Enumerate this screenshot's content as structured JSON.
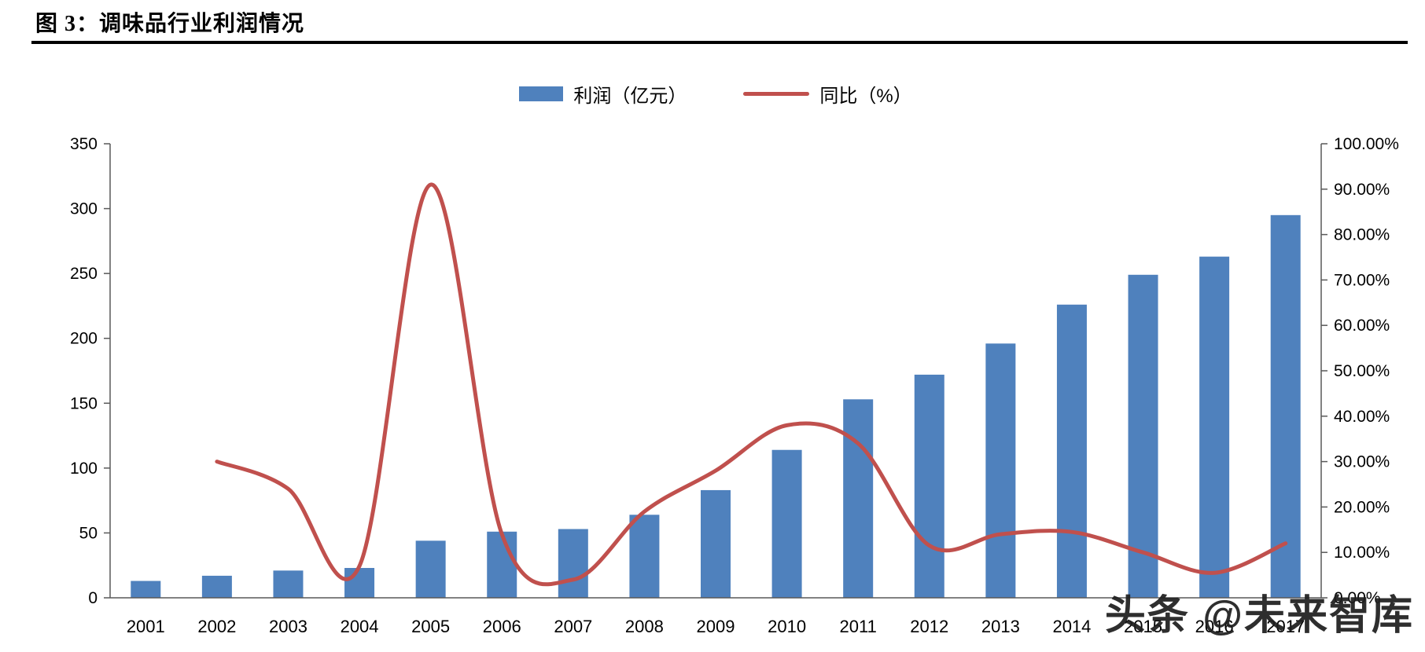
{
  "page": {
    "title": "图 3：调味品行业利润情况",
    "watermark": "头条 @未来智库"
  },
  "chart_data": {
    "type": "bar",
    "combo": "bar+line",
    "title": "调味品行业利润情况",
    "categories": [
      "2001",
      "2002",
      "2003",
      "2004",
      "2005",
      "2006",
      "2007",
      "2008",
      "2009",
      "2010",
      "2011",
      "2012",
      "2013",
      "2014",
      "2015",
      "2016",
      "2017"
    ],
    "series": [
      {
        "name": "利润（亿元）",
        "type": "bar",
        "axis": "left",
        "color": "#4F81BD",
        "values": [
          13,
          17,
          21,
          23,
          44,
          51,
          53,
          64,
          83,
          114,
          153,
          172,
          196,
          226,
          249,
          263,
          295
        ]
      },
      {
        "name": "同比（%）",
        "type": "line",
        "axis": "right",
        "color": "#C0504D",
        "values": [
          null,
          30,
          24,
          7,
          91,
          14,
          4,
          19,
          28,
          38,
          34,
          11.5,
          14,
          14.5,
          10,
          5.5,
          12
        ]
      }
    ],
    "left_axis": {
      "min": 0,
      "max": 350,
      "ticks": [
        "0",
        "50",
        "100",
        "150",
        "200",
        "250",
        "300",
        "350"
      ]
    },
    "right_axis": {
      "min": 0,
      "max": 100,
      "ticks": [
        "0.00%",
        "10.00%",
        "20.00%",
        "30.00%",
        "40.00%",
        "50.00%",
        "60.00%",
        "70.00%",
        "80.00%",
        "90.00%",
        "100.00%"
      ]
    },
    "legend_position": "top-center",
    "grid": false,
    "axis_color": "#595959"
  }
}
